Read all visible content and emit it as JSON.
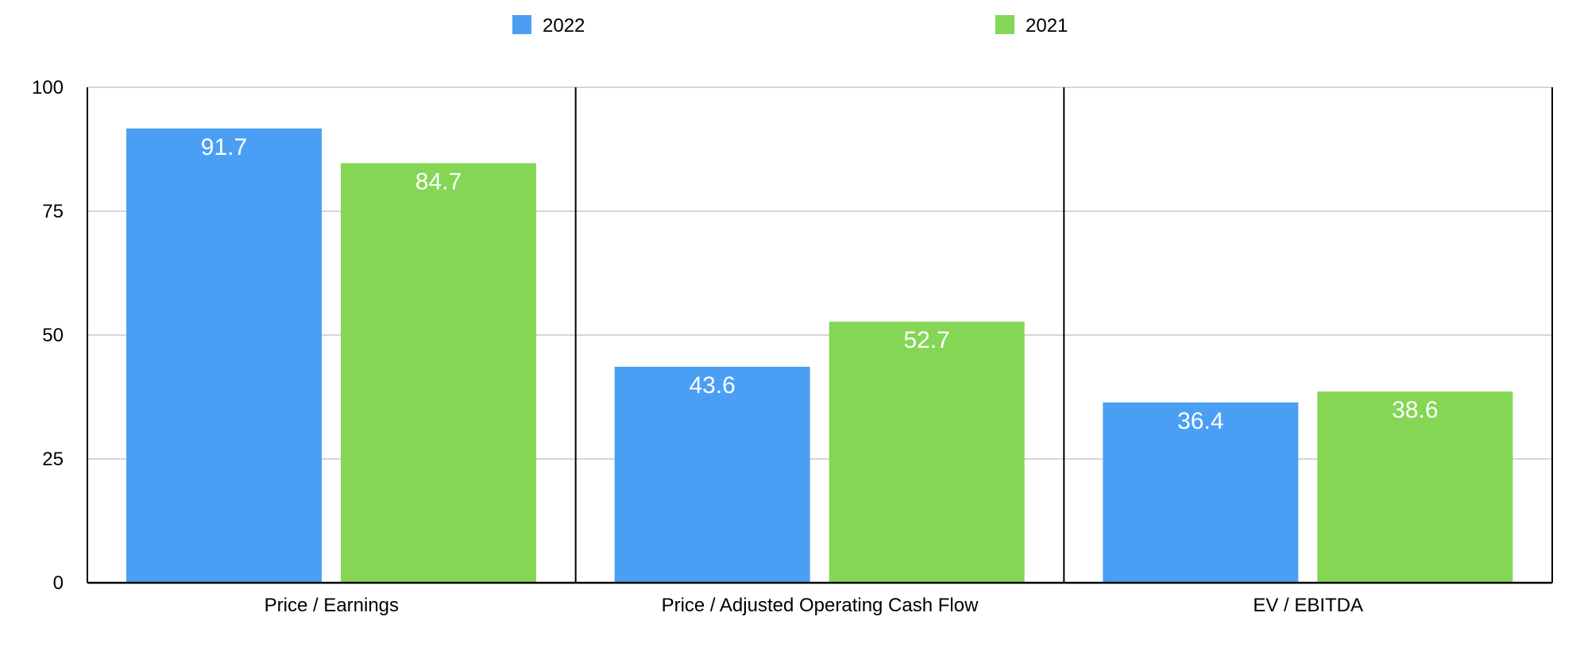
{
  "chart_data": {
    "type": "bar",
    "title": "",
    "xlabel": "",
    "ylabel": "",
    "categories": [
      "Price / Earnings",
      "Price / Adjusted Operating Cash Flow",
      "EV / EBITDA"
    ],
    "series": [
      {
        "name": "2022",
        "color": "#4A9FF5",
        "values": [
          91.7,
          43.6,
          36.4
        ]
      },
      {
        "name": "2021",
        "color": "#84D654",
        "values": [
          84.7,
          52.7,
          38.6
        ]
      }
    ],
    "data_labels": [
      [
        "91.7",
        "43.6",
        "36.4"
      ],
      [
        "84.7",
        "52.7",
        "38.6"
      ]
    ],
    "ylim": [
      0,
      100
    ],
    "yticks": [
      0,
      25,
      50,
      75,
      100
    ],
    "ytick_labels": [
      "0",
      "25",
      "50",
      "75",
      "100"
    ],
    "grid": true,
    "legend": "top-center"
  }
}
